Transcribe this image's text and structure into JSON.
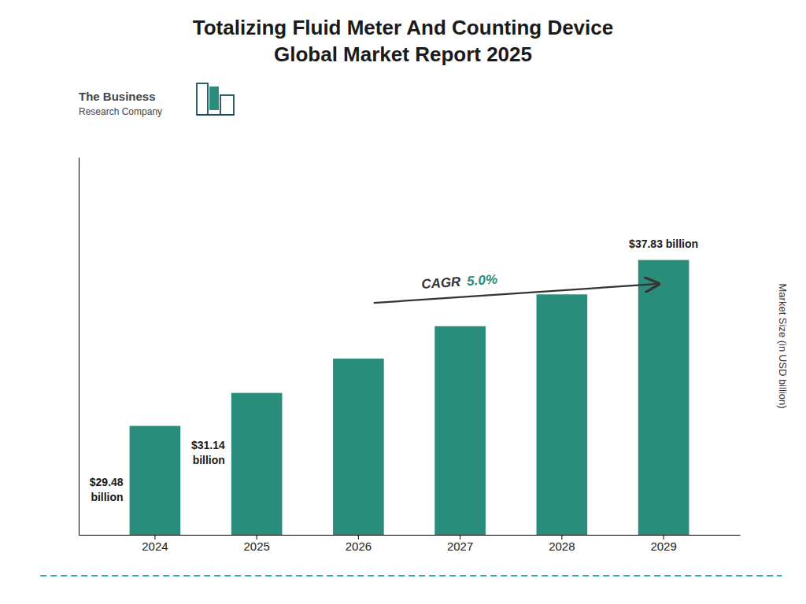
{
  "chart_data": {
    "type": "bar",
    "title": "Totalizing Fluid Meter And Counting Device\nGlobal Market Report 2025",
    "categories": [
      "2024",
      "2025",
      "2026",
      "2027",
      "2028",
      "2029"
    ],
    "values": [
      29.48,
      31.14,
      32.87,
      34.5,
      36.1,
      37.83
    ],
    "value_labels": [
      "$29.48\nbillion",
      "$31.14\nbillion",
      null,
      null,
      null,
      "$37.83 billion"
    ],
    "data_labels": true,
    "color": "#2a8c7a",
    "ylabel": "Market Size (in USD billion)",
    "ylim": [
      24,
      43
    ],
    "tick_labels": "x",
    "grid": false,
    "annotations": [
      "CAGR",
      "5.0%",
      "The Business",
      "Research Company"
    ]
  }
}
